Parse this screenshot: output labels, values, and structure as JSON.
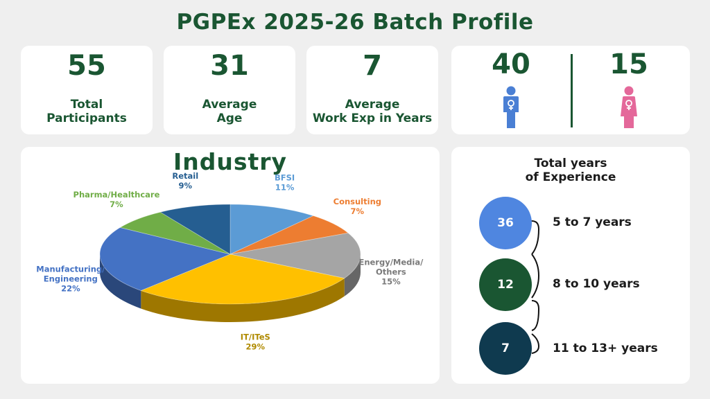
{
  "title": "PGPEx 2025-26 Batch Profile",
  "stats": [
    {
      "value": "55",
      "label_lines": [
        "Total",
        "Participants"
      ]
    },
    {
      "value": "31",
      "label_lines": [
        "Average",
        "Age"
      ]
    },
    {
      "value": "7",
      "label_lines": [
        "Average",
        "Work Exp in Years"
      ]
    }
  ],
  "gender": {
    "male": {
      "value": "40",
      "icon": "male-person-icon",
      "color": "#4a7fd4"
    },
    "female": {
      "value": "15",
      "icon": "female-person-icon",
      "color": "#e4689a"
    }
  },
  "chart_data": [
    {
      "type": "pie",
      "title": "Industry",
      "slices": [
        {
          "label": "BFSI",
          "label_lines": [
            "BFSI"
          ],
          "value": 11,
          "pct_text": "11%",
          "color": "#5b9bd5",
          "label_color": "#5b9bd5"
        },
        {
          "label": "Consulting",
          "label_lines": [
            "Consulting"
          ],
          "value": 7,
          "pct_text": "7%",
          "color": "#ed7d31",
          "label_color": "#ed7d31"
        },
        {
          "label": "Energy/Media/Others",
          "label_lines": [
            "Energy/Media/",
            "Others"
          ],
          "value": 15,
          "pct_text": "15%",
          "color": "#a5a5a5",
          "label_color": "#7a7a7a"
        },
        {
          "label": "IT/ITeS",
          "label_lines": [
            "IT/ITeS"
          ],
          "value": 29,
          "pct_text": "29%",
          "color": "#ffc000",
          "label_color": "#b08a00"
        },
        {
          "label": "Manufacturing/Engineering",
          "label_lines": [
            "Manufacturing/",
            "Engineering"
          ],
          "value": 22,
          "pct_text": "22%",
          "color": "#4472c4",
          "label_color": "#4472c4"
        },
        {
          "label": "Pharma/Healthcare",
          "label_lines": [
            "Pharma/Healthcare"
          ],
          "value": 7,
          "pct_text": "7%",
          "color": "#70ad47",
          "label_color": "#70ad47"
        },
        {
          "label": "Retail",
          "label_lines": [
            "Retail"
          ],
          "value": 9,
          "pct_text": "9%",
          "color": "#255e91",
          "label_color": "#255e91"
        }
      ]
    },
    {
      "type": "table",
      "title": "Total years of Experience",
      "title_lines": [
        "Total years",
        "of Experience"
      ],
      "categories": [
        "5 to 7 years",
        "8 to 10 years",
        "11 to 13+ years"
      ],
      "values": [
        36,
        12,
        7
      ],
      "colors": [
        "#4f86e0",
        "#1a5632",
        "#0f3a4f"
      ]
    }
  ]
}
